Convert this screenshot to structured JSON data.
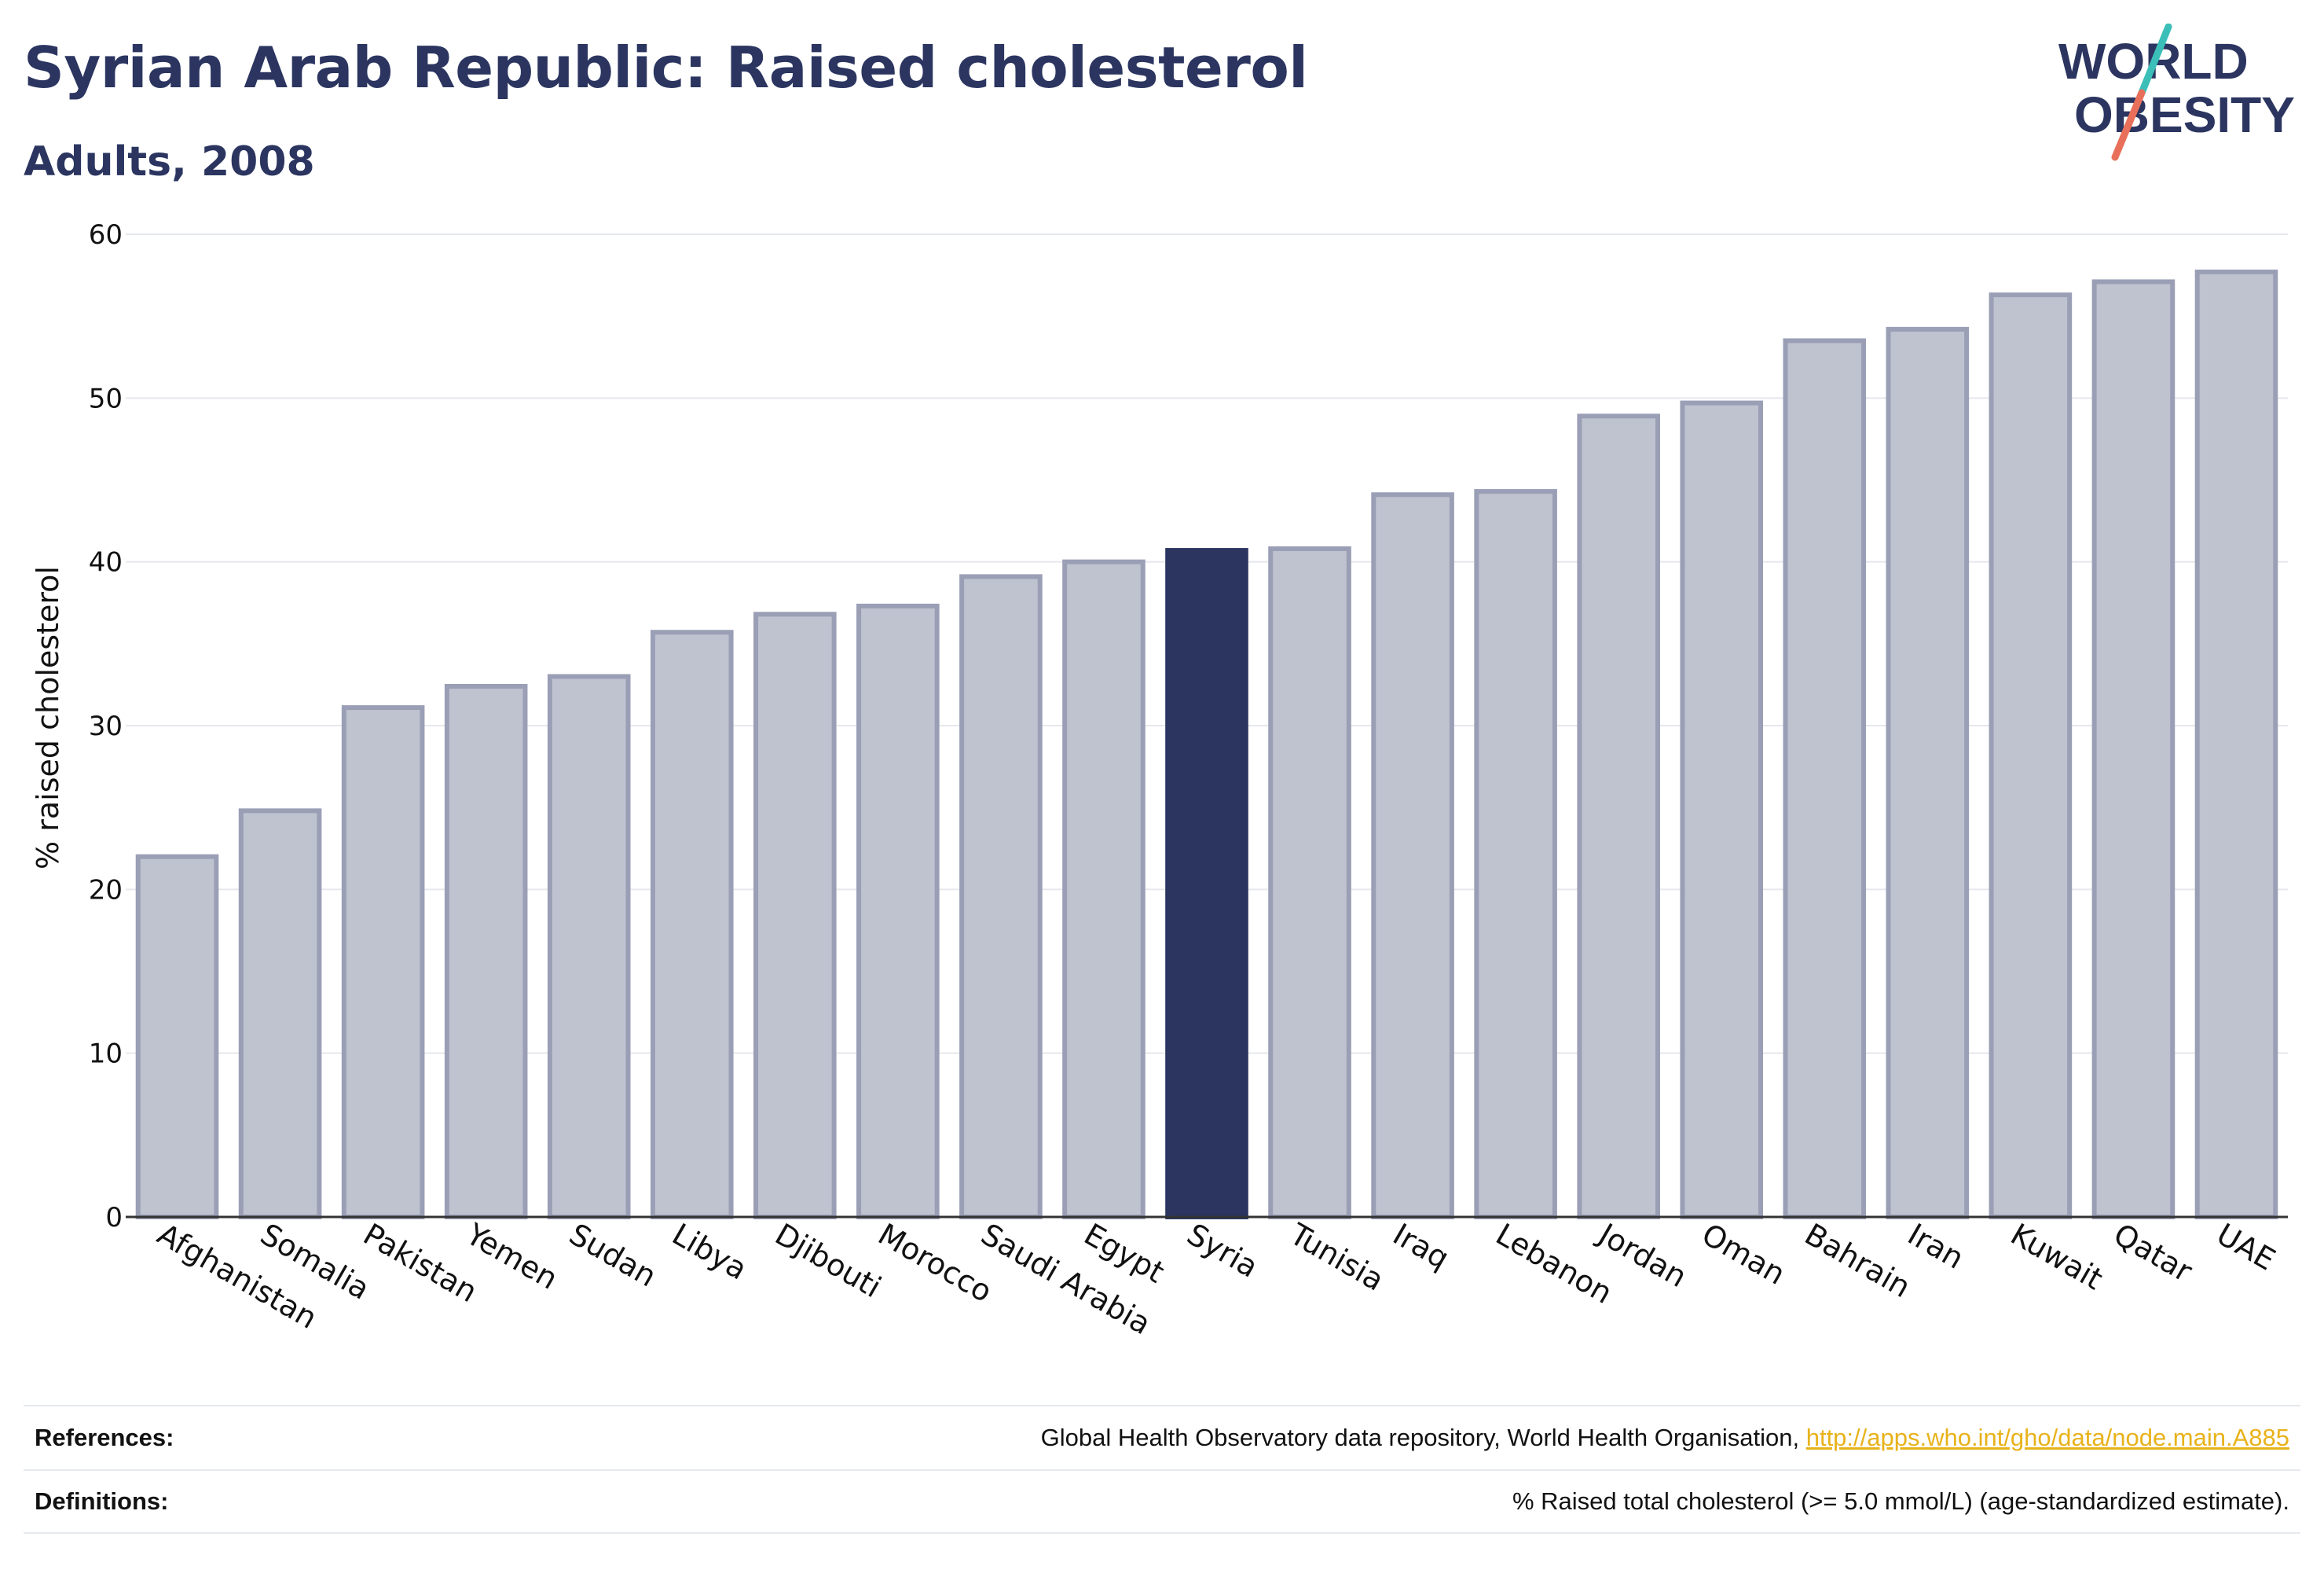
{
  "header": {
    "title": "Syrian Arab Republic: Raised cholesterol",
    "subtitle": "Adults, 2008"
  },
  "logo": {
    "line1": "WORLD",
    "line2": "OBESITY",
    "colors": {
      "text": "#2b3560",
      "slash_top": "#3bbfb8",
      "slash_bottom": "#e8705a"
    }
  },
  "chart_data": {
    "type": "bar",
    "title": "Syrian Arab Republic: Raised cholesterol",
    "subtitle": "Adults, 2008",
    "ylabel": "% raised cholesterol",
    "xlabel": "",
    "ylim": [
      0,
      60
    ],
    "yticks": [
      0,
      10,
      20,
      30,
      40,
      50,
      60
    ],
    "grid": true,
    "highlight": "Syria",
    "colors": {
      "bar": "#bfc2cf",
      "bar_border": "#9a9fb6",
      "highlight": "#2b3560",
      "grid": "#e6e8ee",
      "axis": "#333333"
    },
    "categories": [
      "Afghanistan",
      "Somalia",
      "Pakistan",
      "Yemen",
      "Sudan",
      "Libya",
      "Djibouti",
      "Morocco",
      "Saudi Arabia",
      "Egypt",
      "Syria",
      "Tunisia",
      "Iraq",
      "Lebanon",
      "Jordan",
      "Oman",
      "Bahrain",
      "Iran",
      "Kuwait",
      "Qatar",
      "UAE"
    ],
    "values": [
      22.0,
      24.8,
      31.1,
      32.4,
      33.0,
      35.7,
      36.8,
      37.3,
      39.1,
      40.0,
      40.7,
      40.8,
      44.1,
      44.3,
      48.9,
      49.7,
      53.5,
      54.2,
      56.3,
      57.1,
      57.7
    ]
  },
  "footer": {
    "references_label": "References:",
    "references_text": "Global Health Observatory data repository, World Health Organisation, ",
    "references_link": "http://apps.who.int/gho/data/node.main.A885",
    "definitions_label": "Definitions:",
    "definitions_text": "% Raised total cholesterol (>= 5.0 mmol/L) (age-standardized estimate)."
  }
}
